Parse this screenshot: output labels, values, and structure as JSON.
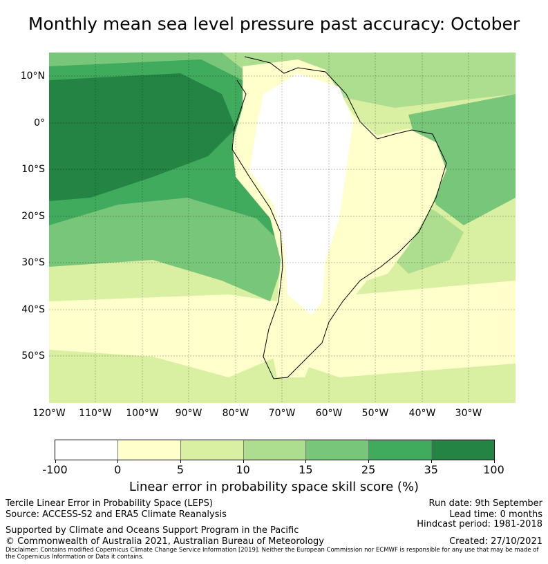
{
  "title": "Monthly mean sea level pressure past accuracy: October",
  "map": {
    "lat_labels": [
      "10°N",
      "0°",
      "10°S",
      "20°S",
      "30°S",
      "40°S",
      "50°S"
    ],
    "lon_labels": [
      "120°W",
      "110°W",
      "100°W",
      "90°W",
      "80°W",
      "70°W",
      "60°W",
      "50°W",
      "40°W",
      "30°W"
    ],
    "gridlines": true,
    "colorbar": {
      "bins": [
        {
          "range": "-100 to 0",
          "color": "#ffffff"
        },
        {
          "range": "0 to 5",
          "color": "#ffffcc"
        },
        {
          "range": "5 to 10",
          "color": "#d9f0a3"
        },
        {
          "range": "10 to 15",
          "color": "#addd8e"
        },
        {
          "range": "15 to 25",
          "color": "#78c679"
        },
        {
          "range": "25 to 35",
          "color": "#41ab5d"
        },
        {
          "range": "35 to 100",
          "color": "#238443"
        }
      ],
      "ticks": [
        "-100",
        "0",
        "5",
        "10",
        "15",
        "25",
        "35",
        "100"
      ],
      "label": "Linear error in probability space skill score (%)"
    }
  },
  "footer": {
    "left_line1": "Tercile Linear Error in Probability Space (LEPS)",
    "left_line2": "Source: ACCESS-S2 and ERA5 Climate Reanalysis",
    "supported": "Supported by Climate and Oceans Support Program in the Pacific",
    "copyright": "© Commonwealth of Australia 2021, Australian Bureau of Meteorology",
    "run_date": "Run date: 9th September",
    "lead_time": "Lead time: 0 months",
    "hindcast": "Hindcast period: 1981-2018",
    "created": "Created: 27/10/2021",
    "disclaimer": "Disclaimer: Contains modified Copernicus Climate Change Service Information [2019]. Neither the European Commission nor ECMWF is responsible for any use that may be made of the Copernicus Information or Data it contains."
  }
}
